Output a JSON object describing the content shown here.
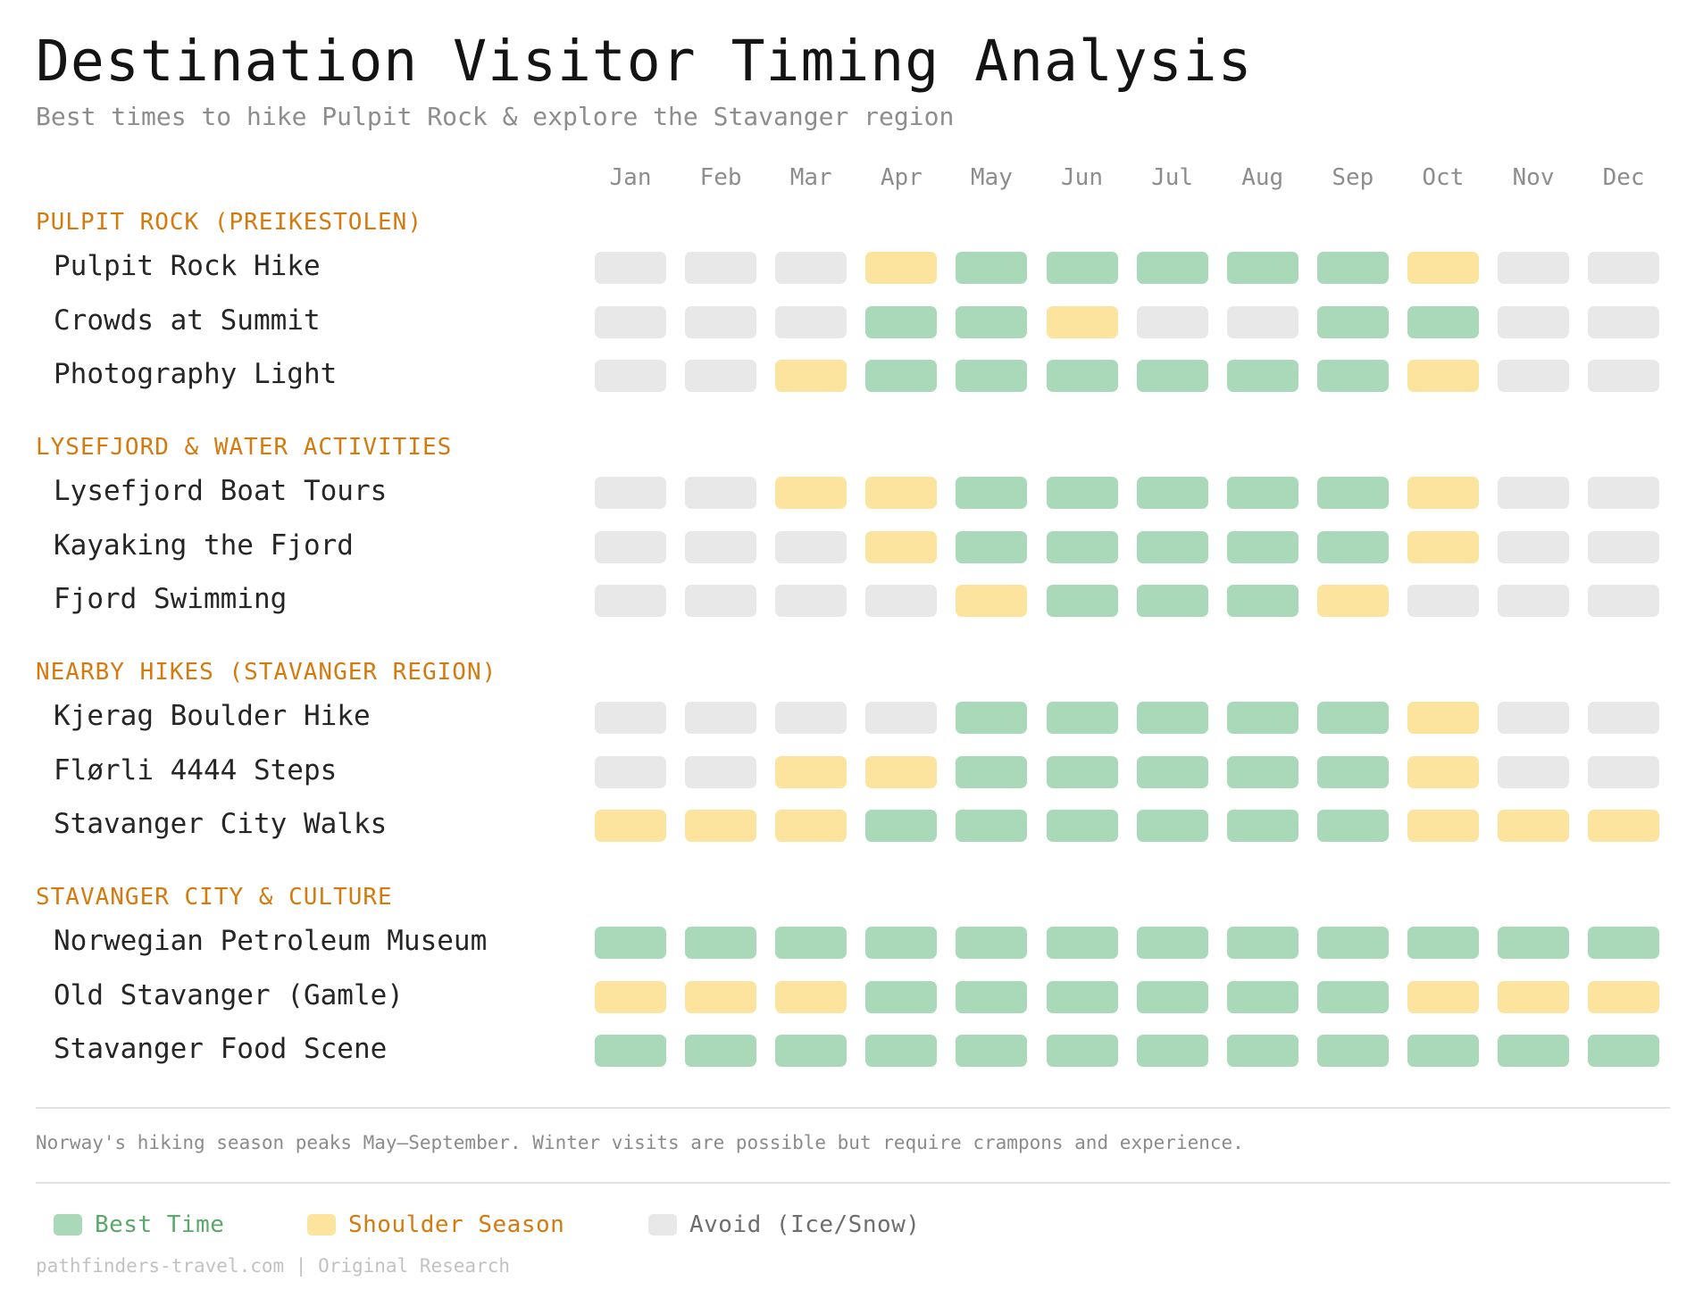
{
  "title": "Destination Visitor Timing Analysis",
  "subtitle": "Best times to hike Pulpit Rock & explore the Stavanger region",
  "colors": {
    "best": "#a9d9b8",
    "shoulder": "#fde49e",
    "avoid": "#e8e8e8",
    "section_heading": "#d57a0e",
    "legend_best_text": "#5aa86a",
    "legend_shoulder_text": "#d57a0e",
    "legend_avoid_text": "#6e6e6e"
  },
  "chart_data": {
    "type": "heatmap",
    "months": [
      "Jan",
      "Feb",
      "Mar",
      "Apr",
      "May",
      "Jun",
      "Jul",
      "Aug",
      "Sep",
      "Oct",
      "Nov",
      "Dec"
    ],
    "status_codes": {
      "B": "Best Time",
      "S": "Shoulder Season",
      "A": "Avoid (Ice/Snow)"
    },
    "sections": [
      {
        "heading": "PULPIT ROCK (PREIKESTOLEN)",
        "rows": [
          {
            "label": "Pulpit Rock Hike",
            "values": [
              "A",
              "A",
              "A",
              "S",
              "B",
              "B",
              "B",
              "B",
              "B",
              "S",
              "A",
              "A"
            ]
          },
          {
            "label": "Crowds at Summit",
            "values": [
              "A",
              "A",
              "A",
              "B",
              "B",
              "S",
              "A",
              "A",
              "B",
              "B",
              "A",
              "A"
            ]
          },
          {
            "label": "Photography Light",
            "values": [
              "A",
              "A",
              "S",
              "B",
              "B",
              "B",
              "B",
              "B",
              "B",
              "S",
              "A",
              "A"
            ]
          }
        ]
      },
      {
        "heading": "LYSEFJORD & WATER ACTIVITIES",
        "rows": [
          {
            "label": "Lysefjord Boat Tours",
            "values": [
              "A",
              "A",
              "S",
              "S",
              "B",
              "B",
              "B",
              "B",
              "B",
              "S",
              "A",
              "A"
            ]
          },
          {
            "label": "Kayaking the Fjord",
            "values": [
              "A",
              "A",
              "A",
              "S",
              "B",
              "B",
              "B",
              "B",
              "B",
              "S",
              "A",
              "A"
            ]
          },
          {
            "label": "Fjord Swimming",
            "values": [
              "A",
              "A",
              "A",
              "A",
              "S",
              "B",
              "B",
              "B",
              "S",
              "A",
              "A",
              "A"
            ]
          }
        ]
      },
      {
        "heading": "NEARBY HIKES (STAVANGER REGION)",
        "rows": [
          {
            "label": "Kjerag Boulder Hike",
            "values": [
              "A",
              "A",
              "A",
              "A",
              "B",
              "B",
              "B",
              "B",
              "B",
              "S",
              "A",
              "A"
            ]
          },
          {
            "label": "Flørli 4444 Steps",
            "values": [
              "A",
              "A",
              "S",
              "S",
              "B",
              "B",
              "B",
              "B",
              "B",
              "S",
              "A",
              "A"
            ]
          },
          {
            "label": "Stavanger City Walks",
            "values": [
              "S",
              "S",
              "S",
              "B",
              "B",
              "B",
              "B",
              "B",
              "B",
              "S",
              "S",
              "S"
            ]
          }
        ]
      },
      {
        "heading": "STAVANGER CITY & CULTURE",
        "rows": [
          {
            "label": "Norwegian Petroleum Museum",
            "values": [
              "B",
              "B",
              "B",
              "B",
              "B",
              "B",
              "B",
              "B",
              "B",
              "B",
              "B",
              "B"
            ]
          },
          {
            "label": "Old Stavanger (Gamle)",
            "values": [
              "S",
              "S",
              "S",
              "B",
              "B",
              "B",
              "B",
              "B",
              "B",
              "S",
              "S",
              "S"
            ]
          },
          {
            "label": "Stavanger Food Scene",
            "values": [
              "B",
              "B",
              "B",
              "B",
              "B",
              "B",
              "B",
              "B",
              "B",
              "B",
              "B",
              "B"
            ]
          }
        ]
      }
    ]
  },
  "note": "Norway's hiking season peaks May–September. Winter visits are possible but require crampons and experience.",
  "legend": [
    {
      "key": "B",
      "label": "Best Time"
    },
    {
      "key": "S",
      "label": "Shoulder Season"
    },
    {
      "key": "A",
      "label": "Avoid (Ice/Snow)"
    }
  ],
  "credit": "pathfinders-travel.com | Original Research"
}
